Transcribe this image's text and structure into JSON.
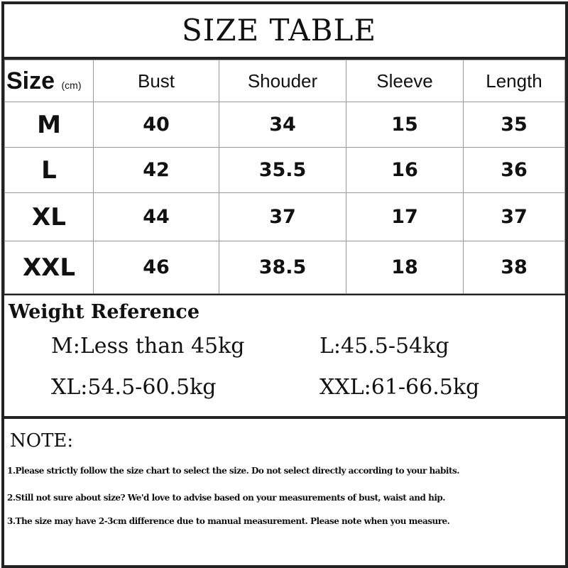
{
  "title": "SIZE TABLE",
  "table": {
    "size_label": "Size",
    "unit": "(cm)",
    "columns": [
      "Bust",
      "Shouder",
      "Sleeve",
      "Length"
    ],
    "rows": [
      {
        "size": "M",
        "values": [
          "40",
          "34",
          "15",
          "35"
        ]
      },
      {
        "size": "L",
        "values": [
          "42",
          "35.5",
          "16",
          "36"
        ]
      },
      {
        "size": "XL",
        "values": [
          "44",
          "37",
          "17",
          "37"
        ]
      },
      {
        "size": "XXL",
        "values": [
          "46",
          "38.5",
          "18",
          "38"
        ]
      }
    ]
  },
  "weight": {
    "heading": "Weight Reference",
    "items": [
      "M:Less than 45kg",
      "L:45.5-54kg",
      "XL:54.5-60.5kg",
      "XXL:61-66.5kg"
    ]
  },
  "notes": {
    "heading": "NOTE:",
    "items": [
      "1.Please strictly follow the size chart to select the size. Do not select directly according to your habits.",
      "2.Still not sure about size? We'd love to advise based on your measurements of bust, waist and hip.",
      "3.The size may have 2-3cm difference due to manual measurement. Please note when you measure."
    ]
  }
}
